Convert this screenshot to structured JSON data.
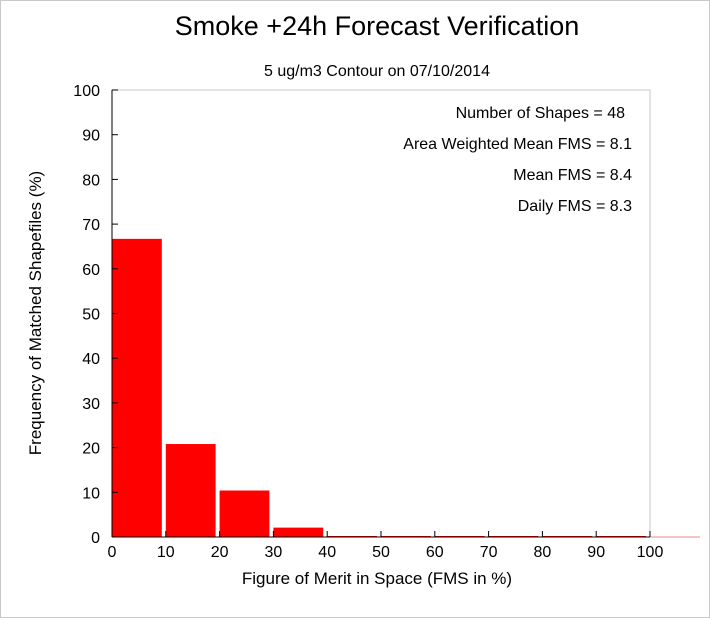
{
  "chart_data": {
    "type": "bar",
    "title": "Smoke +24h Forecast Verification",
    "subtitle": "5 ug/m3 Contour on 07/10/2014",
    "xlabel": "Figure of Merit in Space (FMS in %)",
    "ylabel": "Frequency of Matched Shapefiles (%)",
    "xlim": [
      0,
      100
    ],
    "ylim": [
      0,
      100
    ],
    "xticks": [
      "0",
      "10",
      "20",
      "30",
      "40",
      "50",
      "60",
      "70",
      "80",
      "90",
      "100"
    ],
    "yticks": [
      "0",
      "10",
      "20",
      "30",
      "40",
      "50",
      "60",
      "70",
      "80",
      "90",
      "100"
    ],
    "bins": [
      {
        "from": 0,
        "to": 10,
        "value": 66.7
      },
      {
        "from": 10,
        "to": 20,
        "value": 20.8
      },
      {
        "from": 20,
        "to": 30,
        "value": 10.4
      },
      {
        "from": 30,
        "to": 40,
        "value": 2.1
      },
      {
        "from": 40,
        "to": 50,
        "value": 0
      },
      {
        "from": 50,
        "to": 60,
        "value": 0
      },
      {
        "from": 60,
        "to": 70,
        "value": 0
      },
      {
        "from": 70,
        "to": 80,
        "value": 0
      },
      {
        "from": 80,
        "to": 90,
        "value": 0
      },
      {
        "from": 90,
        "to": 100,
        "value": 0
      }
    ],
    "annotations": [
      "Number of Shapes = 48",
      "Area Weighted Mean FMS = 8.1",
      "Mean FMS = 8.4",
      "Daily FMS = 8.3"
    ],
    "bar_color": "#ff0000",
    "grid": false
  }
}
